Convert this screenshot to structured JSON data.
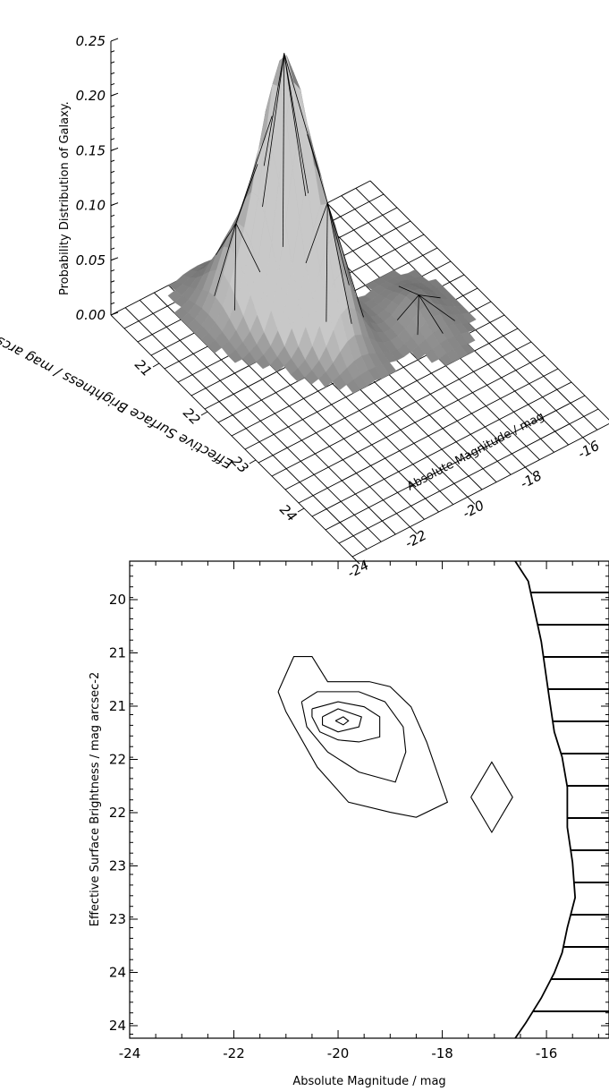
{
  "chart_data": [
    {
      "type": "surface",
      "xlabel": "Absolute Magnitude / mag",
      "ylabel": "Effective Surface Brightness / mag arcsec-2",
      "zlabel": "Probability Distribution of Galaxy.",
      "x_ticks": [
        "-24",
        "-22",
        "-20",
        "-18",
        "-16"
      ],
      "y_ticks": [
        "21",
        "22",
        "23",
        "24"
      ],
      "z_ticks": [
        "0.00",
        "0.05",
        "0.10",
        "0.15",
        "0.20",
        "0.25"
      ],
      "xlim": [
        -24,
        -15
      ],
      "ylim": [
        20,
        25
      ],
      "zlim": [
        0,
        0.25
      ],
      "grid": true,
      "peaks": [
        {
          "x": -20.0,
          "y": 21.2,
          "z": 0.22
        },
        {
          "x": -19.5,
          "y": 21.8,
          "z": 0.09
        },
        {
          "x": -21.0,
          "y": 20.8,
          "z": 0.06
        },
        {
          "x": -17.0,
          "y": 22.2,
          "z": 0.02
        }
      ]
    },
    {
      "type": "contour",
      "xlabel": "Absolute Magnitude / mag",
      "ylabel": "Effective Surface Brightness / mag arcsec-2",
      "x_ticks": [
        "-24",
        "-22",
        "-20",
        "-18",
        "-16"
      ],
      "y_ticks": [
        "20",
        "21",
        "21",
        "22",
        "22",
        "23",
        "23",
        "24",
        "24"
      ],
      "xlim": [
        -24,
        -14.8
      ],
      "ylim": [
        19.65,
        24.4
      ],
      "contours": [
        {
          "level": 1,
          "points": [
            [
              -21.15,
              20.95
            ],
            [
              -20.85,
              20.6
            ],
            [
              -20.5,
              20.6
            ],
            [
              -20.2,
              20.85
            ],
            [
              -19.4,
              20.85
            ],
            [
              -19.0,
              20.9
            ],
            [
              -18.6,
              21.1
            ],
            [
              -18.3,
              21.45
            ],
            [
              -17.9,
              22.05
            ],
            [
              -18.5,
              22.2
            ],
            [
              -19.0,
              22.15
            ],
            [
              -19.8,
              22.05
            ],
            [
              -20.4,
              21.7
            ],
            [
              -21.0,
              21.15
            ],
            [
              -21.15,
              20.95
            ]
          ]
        },
        {
          "level": 2,
          "points": [
            [
              -20.7,
              21.05
            ],
            [
              -20.4,
              20.95
            ],
            [
              -19.6,
              20.95
            ],
            [
              -19.1,
              21.05
            ],
            [
              -18.75,
              21.3
            ],
            [
              -18.7,
              21.55
            ],
            [
              -18.9,
              21.85
            ],
            [
              -19.6,
              21.75
            ],
            [
              -20.2,
              21.55
            ],
            [
              -20.6,
              21.3
            ],
            [
              -20.7,
              21.05
            ]
          ]
        },
        {
          "level": 3,
          "points": [
            [
              -20.5,
              21.12
            ],
            [
              -20.0,
              21.05
            ],
            [
              -19.5,
              21.1
            ],
            [
              -19.2,
              21.2
            ],
            [
              -19.2,
              21.4
            ],
            [
              -19.6,
              21.45
            ],
            [
              -20.0,
              21.43
            ],
            [
              -20.35,
              21.35
            ],
            [
              -20.5,
              21.2
            ],
            [
              -20.5,
              21.12
            ]
          ]
        },
        {
          "level": 4,
          "points": [
            [
              -20.3,
              21.2
            ],
            [
              -20.0,
              21.12
            ],
            [
              -19.55,
              21.2
            ],
            [
              -19.6,
              21.3
            ],
            [
              -20.0,
              21.35
            ],
            [
              -20.3,
              21.28
            ],
            [
              -20.3,
              21.2
            ]
          ]
        },
        {
          "level": 5,
          "points": [
            [
              -20.05,
              21.24
            ],
            [
              -19.9,
              21.2
            ],
            [
              -19.8,
              21.24
            ],
            [
              -19.9,
              21.28
            ],
            [
              -20.05,
              21.24
            ]
          ]
        },
        {
          "level": 1,
          "points": [
            [
              -17.45,
              22.0
            ],
            [
              -17.05,
              21.65
            ],
            [
              -16.65,
              22.0
            ],
            [
              -17.05,
              22.35
            ],
            [
              -17.45,
              22.0
            ]
          ]
        }
      ],
      "excluded_boundary": [
        [
          -16.6,
          19.65
        ],
        [
          -16.35,
          19.85
        ],
        [
          -16.1,
          20.45
        ],
        [
          -15.95,
          21.0
        ],
        [
          -15.85,
          21.35
        ],
        [
          -15.7,
          21.6
        ],
        [
          -15.6,
          21.9
        ],
        [
          -15.6,
          22.3
        ],
        [
          -15.5,
          22.65
        ],
        [
          -15.45,
          23.0
        ],
        [
          -15.6,
          23.3
        ],
        [
          -15.7,
          23.55
        ],
        [
          -15.85,
          23.75
        ],
        [
          -16.1,
          24.0
        ],
        [
          -16.4,
          24.25
        ],
        [
          -16.6,
          24.4
        ]
      ],
      "hatch": "horizontal"
    }
  ]
}
